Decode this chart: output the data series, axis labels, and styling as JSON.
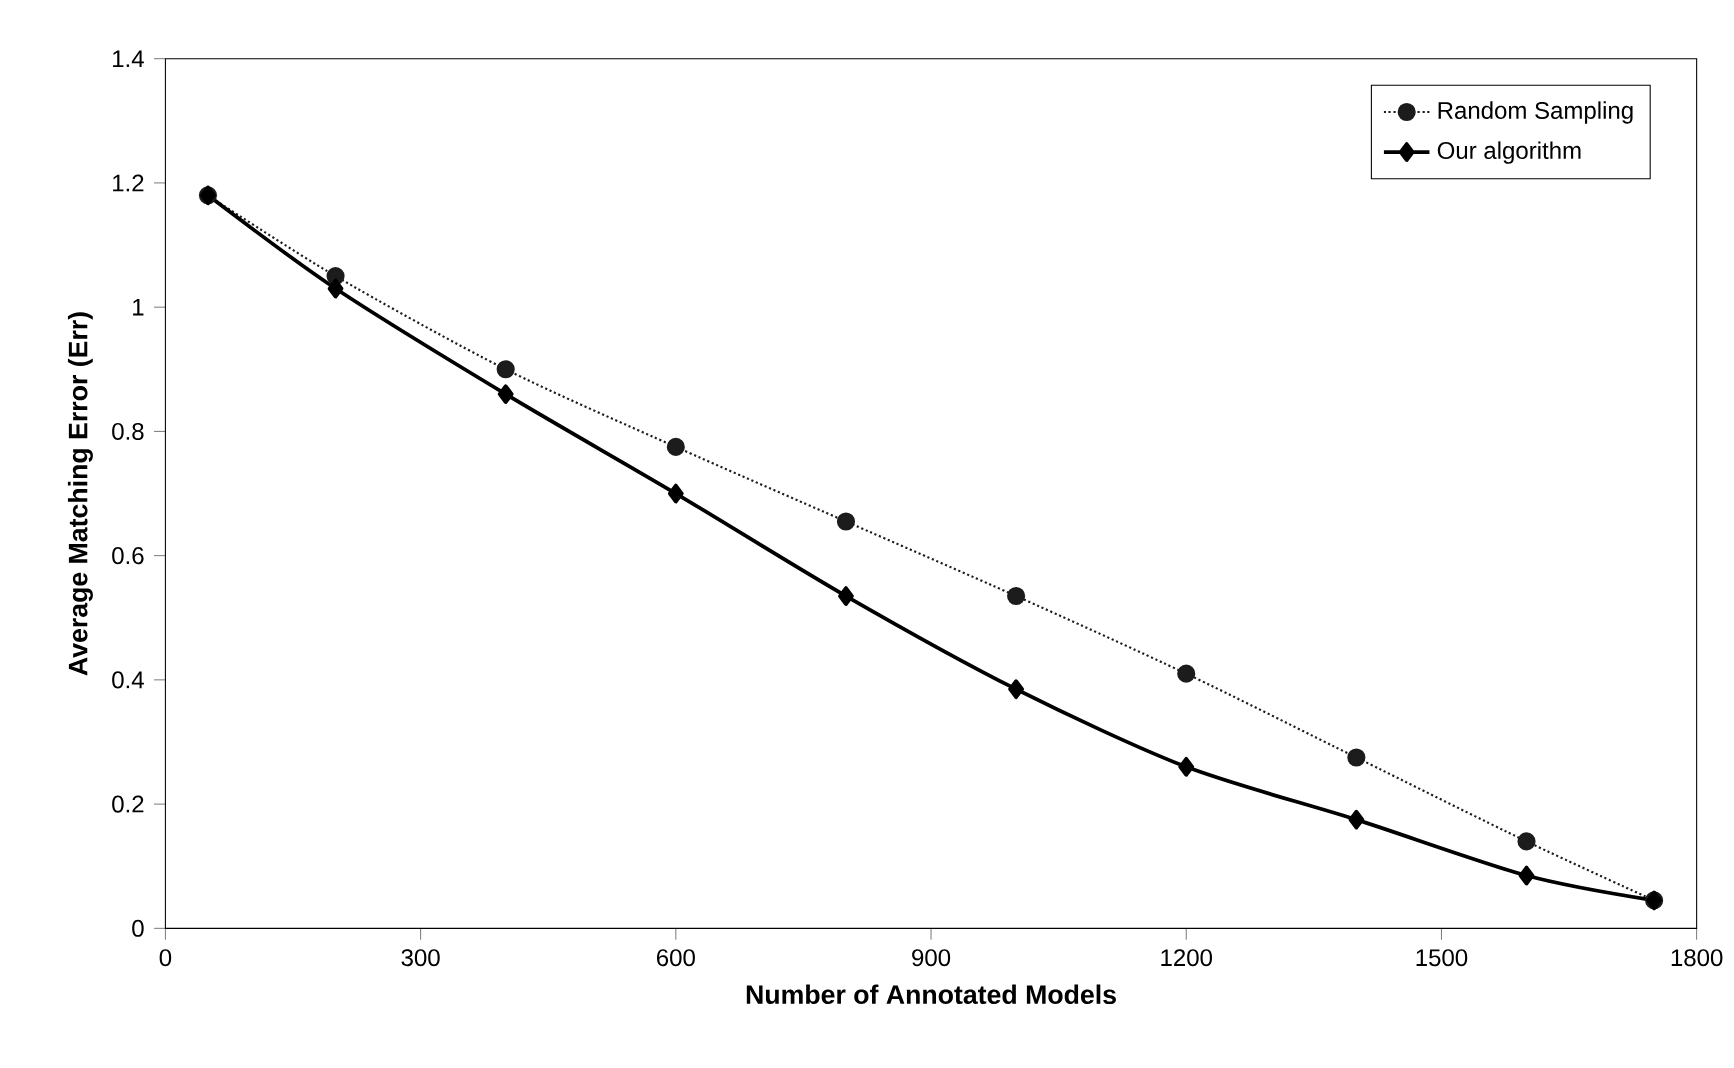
{
  "chart_data": {
    "type": "line",
    "xlabel": "Number of Annotated Models",
    "ylabel": "Average Matching Error (Err)",
    "xlim": [
      0,
      1800
    ],
    "xticks": [
      0,
      300,
      600,
      900,
      1200,
      1500,
      1800
    ],
    "ylim": [
      0,
      1.4
    ],
    "yticks": [
      0,
      0.2,
      0.4,
      0.6,
      0.8,
      1,
      1.2,
      1.4
    ],
    "x": [
      50,
      200,
      400,
      600,
      800,
      1000,
      1200,
      1400,
      1600,
      1750
    ],
    "series": [
      {
        "name": "Random Sampling",
        "color": "#1c1c1c",
        "marker": "circle",
        "line_style": "dotted",
        "values": [
          1.18,
          1.05,
          0.9,
          0.775,
          0.655,
          0.535,
          0.41,
          0.275,
          0.14,
          0.045
        ]
      },
      {
        "name": "Our algorithm",
        "color": "#000000",
        "marker": "diamond",
        "line_style": "solid",
        "values": [
          1.18,
          1.03,
          0.86,
          0.7,
          0.535,
          0.385,
          0.26,
          0.175,
          0.085,
          0.045
        ]
      }
    ],
    "legend": "top right",
    "grid": false
  }
}
